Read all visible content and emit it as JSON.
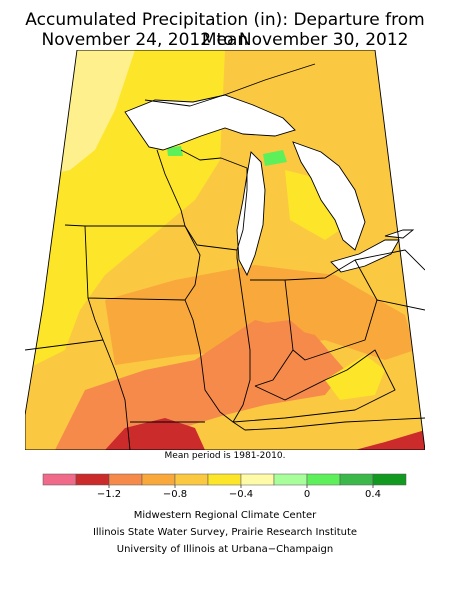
{
  "title": {
    "line1": "Accumulated Precipitation (in): Departure from Mean",
    "line2": "November 24, 2012 to November 30, 2012"
  },
  "map": {
    "note": "Mean period is 1981-2010.",
    "water_color": "#ffffff",
    "boundary_color": "#000000"
  },
  "legend": {
    "swatches": [
      {
        "color": "#f06a8a"
      },
      {
        "color": "#cc2b2b"
      },
      {
        "color": "#f58a4a"
      },
      {
        "color": "#f9a83c"
      },
      {
        "color": "#fbc842"
      },
      {
        "color": "#fde52a"
      },
      {
        "color": "#fefba8"
      },
      {
        "color": "#a8fe9a"
      },
      {
        "color": "#5ef05a"
      },
      {
        "color": "#3cb84a"
      },
      {
        "color": "#129a20"
      }
    ],
    "tick_labels": [
      "−1.2",
      "−0.8",
      "−0.4",
      "0",
      "0.4"
    ]
  },
  "credits": {
    "line1": "Midwestern Regional Climate Center",
    "line2": "Illinois State Water Survey, Prairie Research Institute",
    "line3": "University of Illinois at Urbana−Champaign"
  }
}
